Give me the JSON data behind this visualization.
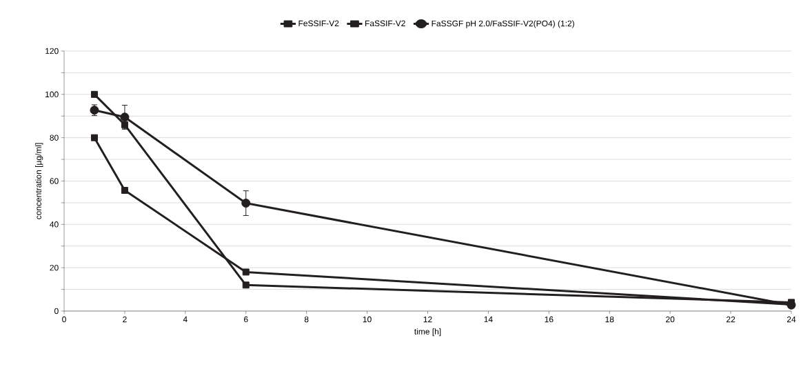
{
  "chart_data": {
    "type": "line",
    "xlabel": "time [h]",
    "ylabel": "concentration [µg/ml]",
    "x": [
      1,
      2,
      6,
      24
    ],
    "series": [
      {
        "name": "FeSSIF-V2",
        "color": "#231f20",
        "marker": "square",
        "values": [
          100,
          86,
          12,
          4
        ],
        "errors": [
          null,
          [
            84,
            86
          ],
          null,
          null
        ]
      },
      {
        "name": "FaSSIF-V2",
        "color": "#231f20",
        "marker": "square",
        "values": [
          80,
          55.7,
          18,
          3
        ]
      },
      {
        "name": "FaSSGF pH 2.0/FaSSIF-V2(PO4) (1:2)",
        "color": "#231f20",
        "marker": "circle",
        "values": [
          92.7,
          89.5,
          49.8,
          2.8
        ],
        "errors": [
          2.5,
          5.5,
          5.7,
          null
        ]
      }
    ],
    "xlim": [
      0,
      24
    ],
    "xticks": [
      0,
      2,
      4,
      6,
      8,
      10,
      12,
      14,
      16,
      18,
      20,
      22,
      24
    ],
    "ylim": [
      0,
      120
    ],
    "yticks": [
      0,
      {
        "value": 10,
        "label": null
      },
      20,
      {
        "value": 30,
        "label": null
      },
      40,
      {
        "value": 50,
        "label": null
      },
      60,
      {
        "value": 70,
        "label": null
      },
      80,
      {
        "value": 90,
        "label": null
      },
      100,
      {
        "value": 110,
        "label": null
      },
      120
    ],
    "grid": "y",
    "legend": "top",
    "line_style": "solid"
  }
}
